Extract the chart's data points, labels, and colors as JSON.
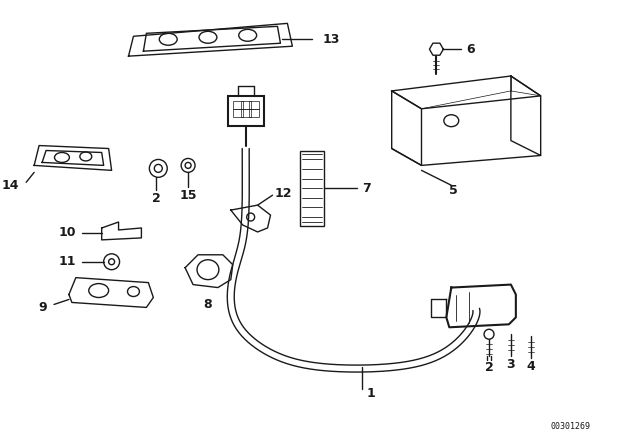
{
  "background_color": "#ffffff",
  "diagram_color": "#1a1a1a",
  "watermark": "00301269",
  "fig_w": 6.4,
  "fig_h": 4.48,
  "dpi": 100
}
